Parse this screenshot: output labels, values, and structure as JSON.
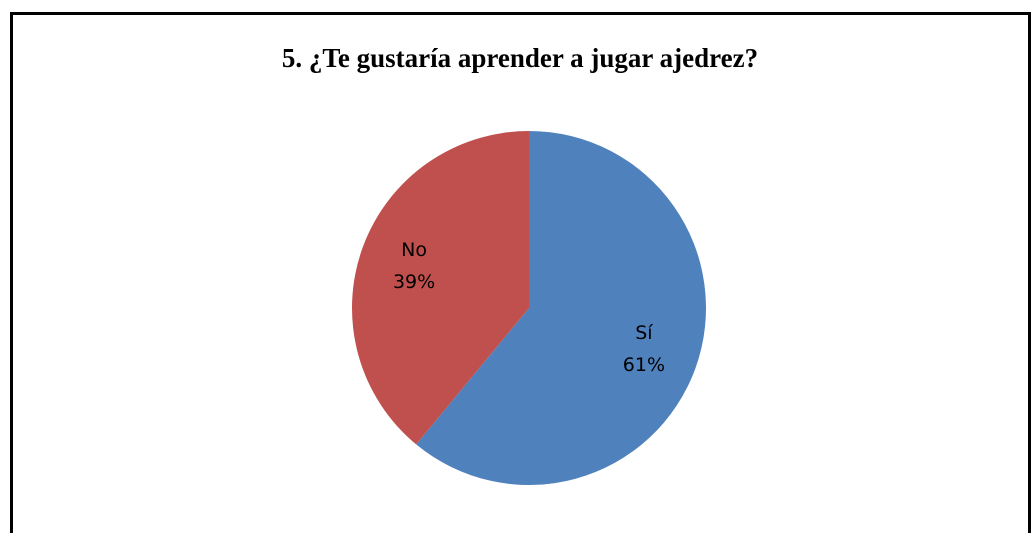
{
  "chart_data": {
    "type": "pie",
    "title": "5. ¿Te gustaría aprender a jugar ajedrez?",
    "categories": [
      "Sí",
      "No"
    ],
    "values": [
      61,
      39
    ],
    "value_labels": [
      "61%",
      "39%"
    ],
    "colors": [
      "#4f81bd",
      "#c0504d"
    ]
  }
}
